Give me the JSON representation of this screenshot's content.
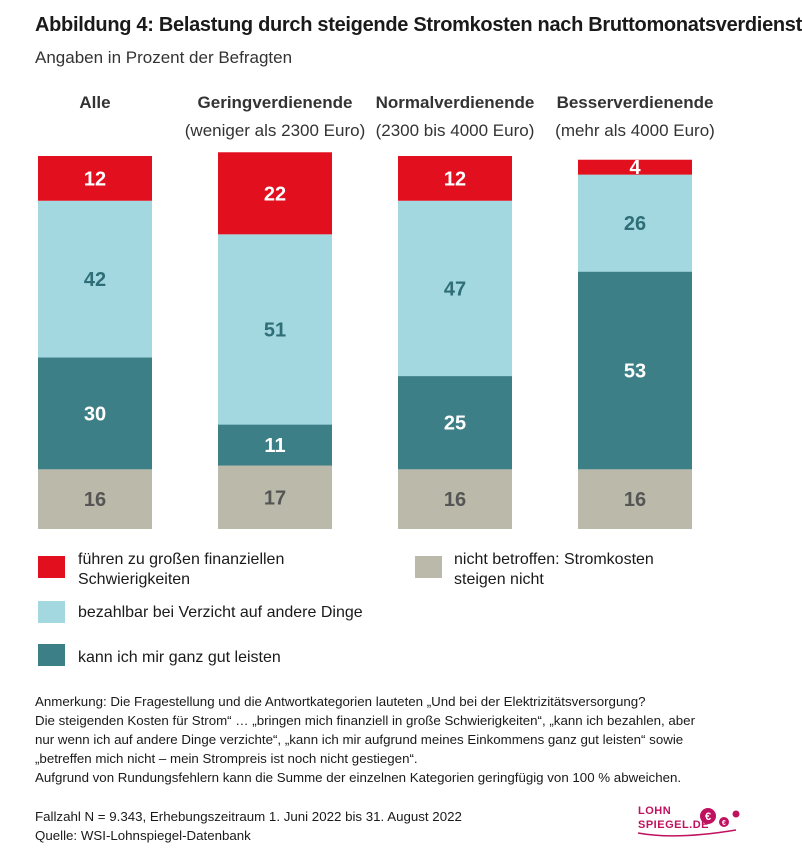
{
  "header": {
    "title": "Abbildung 4: Belastung durch steigende Stromkosten nach Bruttomonatsverdienst",
    "subtitle": "Angaben in Prozent der Befragten"
  },
  "chart_data": {
    "type": "bar",
    "stacked": true,
    "categories": [
      "Alle",
      "Geringverdienende",
      "Normalverdienende",
      "Besserverdienende"
    ],
    "category_subtitles": [
      "",
      "(weniger als 2300 Euro)",
      "(2300 bis 4000 Euro)",
      "(mehr als 4000 Euro)"
    ],
    "series": [
      {
        "name": "nicht betroffen: Stromkosten steigen nicht",
        "color": "#bbb9a9",
        "label_color": "#555555",
        "values": [
          16,
          17,
          16,
          16
        ]
      },
      {
        "name": "kann ich mir ganz gut leisten",
        "color": "#3d7f87",
        "label_color": "#ffffff",
        "values": [
          30,
          11,
          25,
          53
        ]
      },
      {
        "name": "bezahlbar bei Verzicht auf andere Dinge",
        "color": "#a3d8e0",
        "label_color": "#2f6e76",
        "values": [
          42,
          51,
          47,
          26
        ]
      },
      {
        "name": "führen zu großen finanziellen Schwierigkeiten",
        "color": "#e2101f",
        "label_color": "#ffffff",
        "values": [
          12,
          22,
          12,
          4
        ]
      }
    ],
    "ylim": [
      0,
      100
    ]
  },
  "legend": [
    {
      "text": "führen zu großen finanziellen Schwierigkeiten",
      "color": "#e2101f"
    },
    {
      "text": "bezahlbar bei Verzicht auf andere Dinge",
      "color": "#a3d8e0"
    },
    {
      "text": "kann ich mir ganz gut leisten",
      "color": "#3d7f87"
    },
    {
      "text": "nicht betroffen: Stromkosten steigen nicht",
      "color": "#bbb9a9"
    }
  ],
  "note": {
    "lines": [
      "Anmerkung: Die Fragestellung und die Antwortkategorien lauteten „Und bei der Elektrizitätsversorgung?",
      "Die steigenden Kosten für Strom“ … „bringen mich finanziell in große Schwierigkeiten“, „kann ich bezahlen, aber",
      "nur wenn ich auf andere Dinge verzichte“, „kann ich mir aufgrund meines Einkommens ganz gut leisten“ sowie",
      "„betreffen mich nicht – mein Strompreis ist noch nicht gestiegen“.",
      "Aufgrund von Rundungsfehlern kann die Summe der einzelnen Kategorien geringfügig von 100 % abweichen."
    ]
  },
  "footer": {
    "fallzahl": "Fallzahl N = 9.343, Erhebungszeitraum 1. Juni 2022 bis 31. August 2022",
    "quelle": "Quelle: WSI-Lohnspiegel-Datenbank"
  },
  "logo": {
    "line1": "LOHN",
    "line2": "SPIEGEL.DE",
    "color": "#c0115f"
  }
}
